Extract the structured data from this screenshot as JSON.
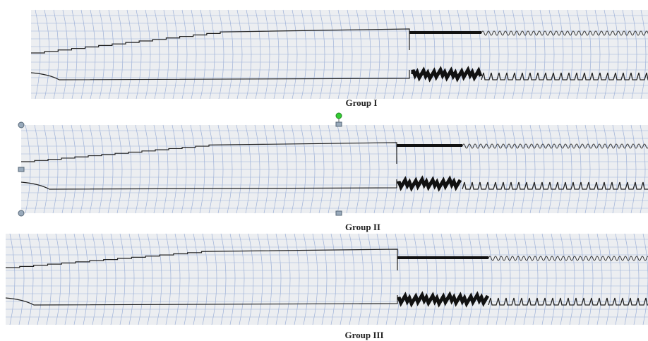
{
  "figures": [
    {
      "caption": "Group I"
    },
    {
      "caption": "Group II"
    },
    {
      "caption": "Group III"
    }
  ]
}
